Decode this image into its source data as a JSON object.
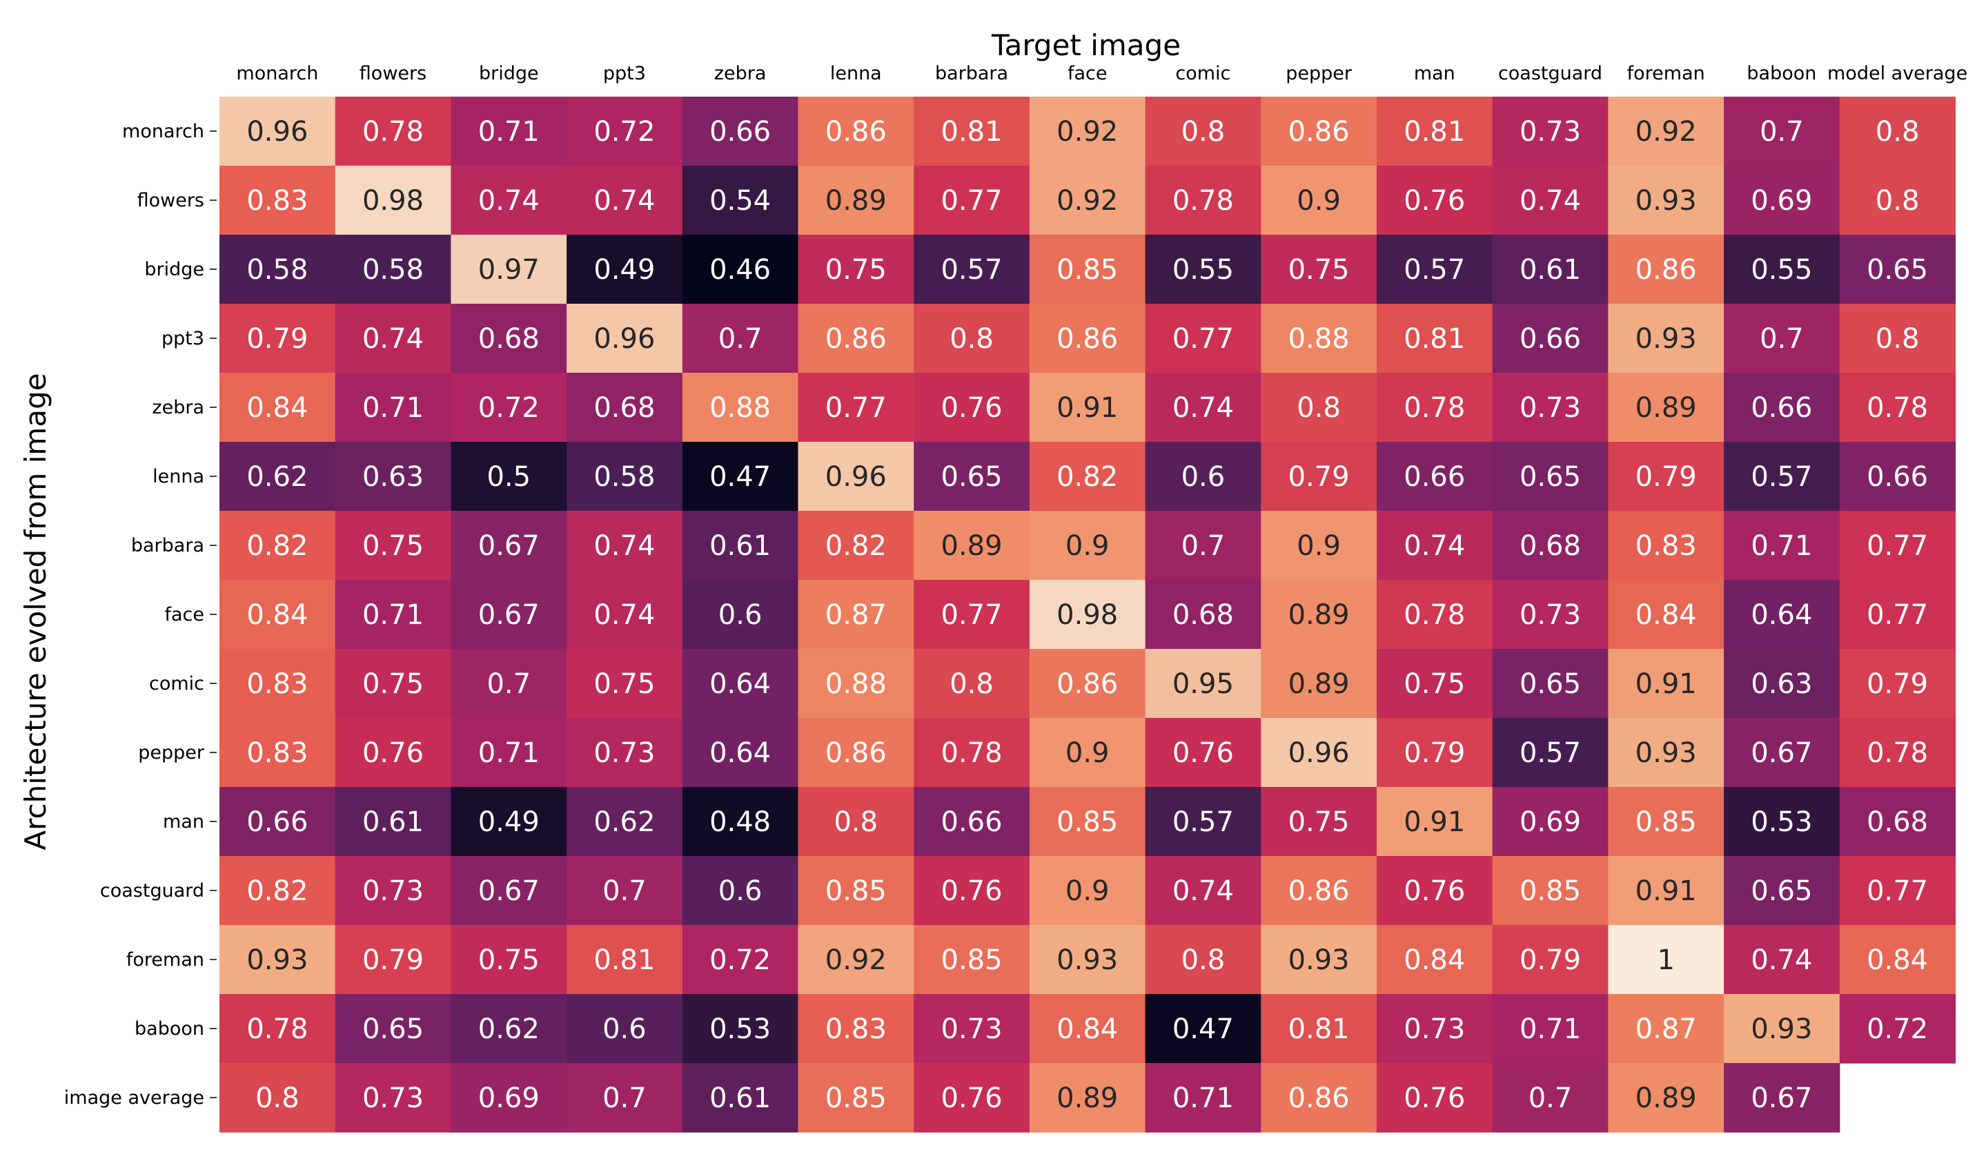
{
  "chart_data": {
    "type": "heatmap",
    "title": "Target image",
    "xlabel": "Target image",
    "ylabel": "Architecture evolved from image",
    "columns": [
      "monarch",
      "flowers",
      "bridge",
      "ppt3",
      "zebra",
      "lenna",
      "barbara",
      "face",
      "comic",
      "pepper",
      "man",
      "coastguard",
      "foreman",
      "baboon",
      "model average"
    ],
    "rows": [
      "monarch",
      "flowers",
      "bridge",
      "ppt3",
      "zebra",
      "lenna",
      "barbara",
      "face",
      "comic",
      "pepper",
      "man",
      "coastguard",
      "foreman",
      "baboon",
      "image average"
    ],
    "values": [
      [
        0.96,
        0.78,
        0.71,
        0.72,
        0.66,
        0.86,
        0.81,
        0.92,
        0.8,
        0.86,
        0.81,
        0.73,
        0.92,
        0.7,
        0.8
      ],
      [
        0.83,
        0.98,
        0.74,
        0.74,
        0.54,
        0.89,
        0.77,
        0.92,
        0.78,
        0.9,
        0.76,
        0.74,
        0.93,
        0.69,
        0.8
      ],
      [
        0.58,
        0.58,
        0.97,
        0.49,
        0.46,
        0.75,
        0.57,
        0.85,
        0.55,
        0.75,
        0.57,
        0.61,
        0.86,
        0.55,
        0.65
      ],
      [
        0.79,
        0.74,
        0.68,
        0.96,
        0.7,
        0.86,
        0.8,
        0.86,
        0.77,
        0.88,
        0.81,
        0.66,
        0.93,
        0.7,
        0.8
      ],
      [
        0.84,
        0.71,
        0.72,
        0.68,
        0.88,
        0.77,
        0.76,
        0.91,
        0.74,
        0.8,
        0.78,
        0.73,
        0.89,
        0.66,
        0.78
      ],
      [
        0.62,
        0.63,
        0.5,
        0.58,
        0.47,
        0.96,
        0.65,
        0.82,
        0.6,
        0.79,
        0.66,
        0.65,
        0.79,
        0.57,
        0.66
      ],
      [
        0.82,
        0.75,
        0.67,
        0.74,
        0.61,
        0.82,
        0.89,
        0.9,
        0.7,
        0.9,
        0.74,
        0.68,
        0.83,
        0.71,
        0.77
      ],
      [
        0.84,
        0.71,
        0.67,
        0.74,
        0.6,
        0.87,
        0.77,
        0.98,
        0.68,
        0.89,
        0.78,
        0.73,
        0.84,
        0.64,
        0.77
      ],
      [
        0.83,
        0.75,
        0.7,
        0.75,
        0.64,
        0.88,
        0.8,
        0.86,
        0.95,
        0.89,
        0.75,
        0.65,
        0.91,
        0.63,
        0.79
      ],
      [
        0.83,
        0.76,
        0.71,
        0.73,
        0.64,
        0.86,
        0.78,
        0.9,
        0.76,
        0.96,
        0.79,
        0.57,
        0.93,
        0.67,
        0.78
      ],
      [
        0.66,
        0.61,
        0.49,
        0.62,
        0.48,
        0.8,
        0.66,
        0.85,
        0.57,
        0.75,
        0.91,
        0.69,
        0.85,
        0.53,
        0.68
      ],
      [
        0.82,
        0.73,
        0.67,
        0.7,
        0.6,
        0.85,
        0.76,
        0.9,
        0.74,
        0.86,
        0.76,
        0.85,
        0.91,
        0.65,
        0.77
      ],
      [
        0.93,
        0.79,
        0.75,
        0.81,
        0.72,
        0.92,
        0.85,
        0.93,
        0.8,
        0.93,
        0.84,
        0.79,
        1,
        0.74,
        0.84
      ],
      [
        0.78,
        0.65,
        0.62,
        0.6,
        0.53,
        0.83,
        0.73,
        0.84,
        0.47,
        0.81,
        0.73,
        0.71,
        0.87,
        0.93,
        0.72
      ],
      [
        0.8,
        0.73,
        0.69,
        0.7,
        0.61,
        0.85,
        0.76,
        0.89,
        0.71,
        0.86,
        0.76,
        0.7,
        0.89,
        0.67,
        null
      ]
    ],
    "value_range": [
      0.46,
      1.0
    ],
    "colormap": "rocket",
    "grid": false,
    "legend": "none"
  }
}
